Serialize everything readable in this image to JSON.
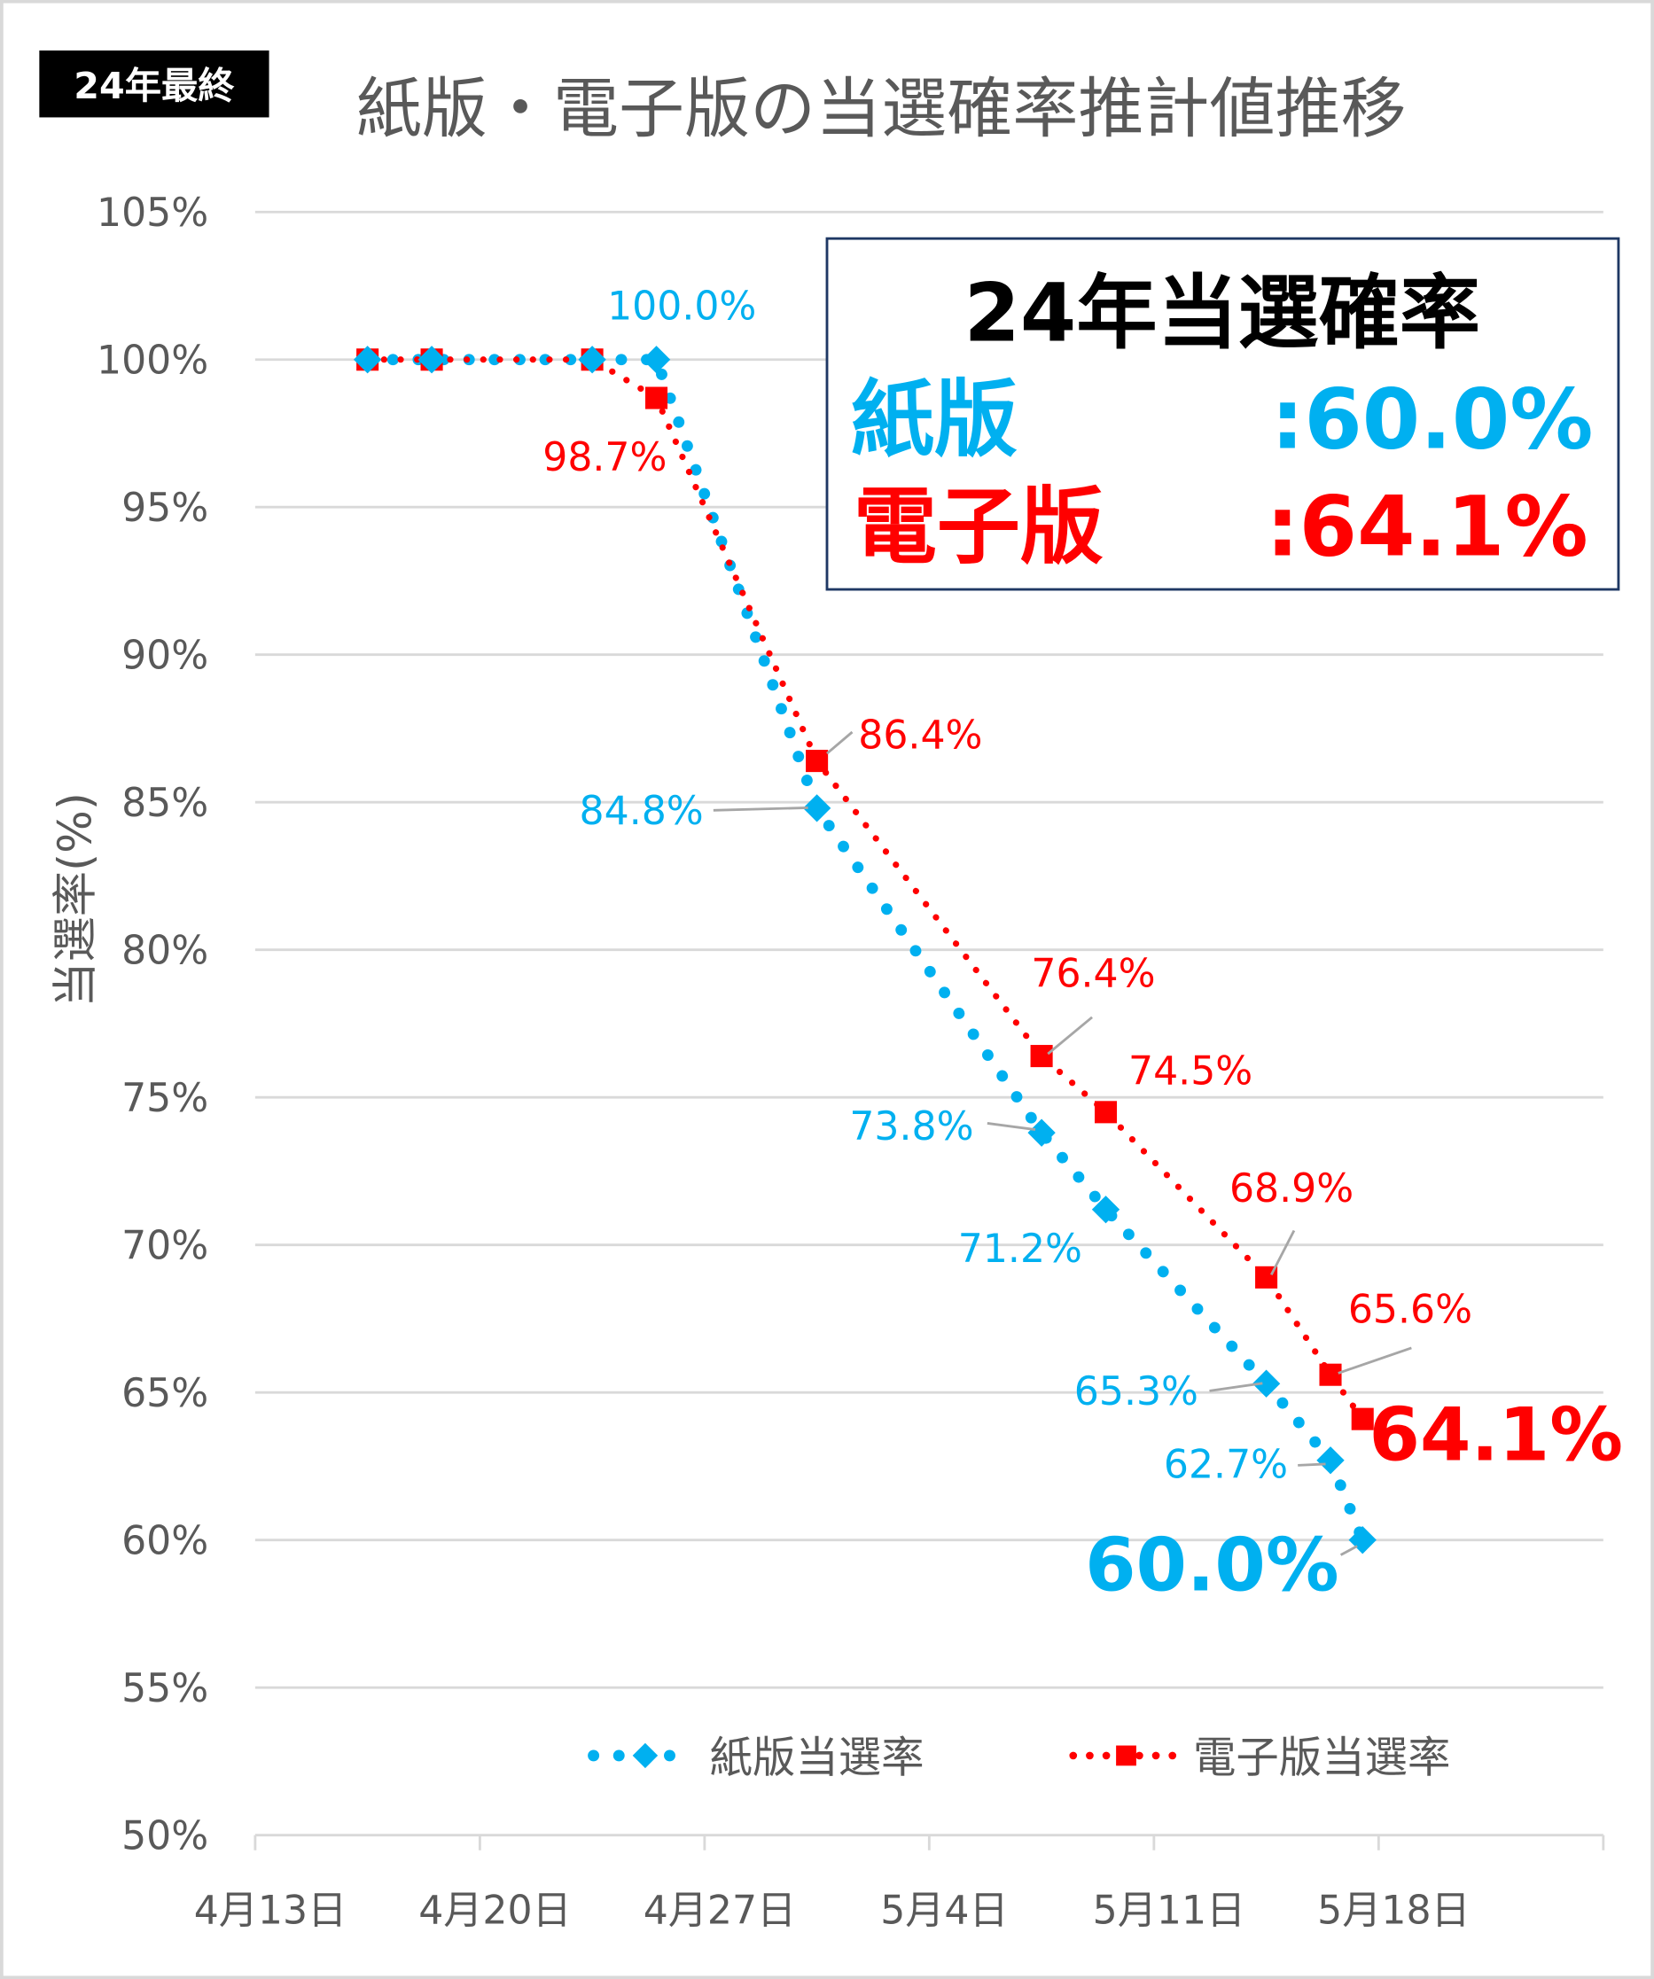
{
  "badge": "24年最終",
  "chart_data": {
    "type": "line",
    "title": "紙版・電子版の当選確率推計値推移",
    "xlabel": "",
    "ylabel": "当選率(%)",
    "ylim": [
      50,
      105
    ],
    "yticks": [
      "50%",
      "55%",
      "60%",
      "65%",
      "70%",
      "75%",
      "80%",
      "85%",
      "90%",
      "95%",
      "100%",
      "105%"
    ],
    "xticks": [
      "4月13日",
      "4月20日",
      "4月27日",
      "5月4日",
      "5月11日",
      "5月18日"
    ],
    "grid": true,
    "legend_position": "bottom",
    "series": [
      {
        "name": "紙版当選率",
        "color": "#00B0F0",
        "marker": "diamond",
        "x": [
          "4/16",
          "4/18",
          "4/23",
          "4/25",
          "4/30",
          "5/7",
          "5/9",
          "5/14",
          "5/16",
          "5/17"
        ],
        "day_index": [
          3,
          5,
          10,
          12,
          17,
          24,
          26,
          31,
          33,
          34
        ],
        "values": [
          100,
          100,
          100,
          100,
          84.8,
          73.8,
          71.2,
          65.3,
          62.7,
          60.0
        ],
        "labels": [
          null,
          null,
          null,
          "100.0%",
          "84.8%",
          "73.8%",
          "71.2%",
          "65.3%",
          "62.7%",
          "60.0%"
        ]
      },
      {
        "name": "電子版当選率",
        "color": "#FF0000",
        "marker": "square",
        "x": [
          "4/16",
          "4/18",
          "4/23",
          "4/25",
          "4/30",
          "5/7",
          "5/9",
          "5/14",
          "5/16",
          "5/17"
        ],
        "day_index": [
          3,
          5,
          10,
          12,
          17,
          24,
          26,
          31,
          33,
          34
        ],
        "values": [
          100,
          100,
          100,
          98.7,
          86.4,
          76.4,
          74.5,
          68.9,
          65.6,
          64.1
        ],
        "labels": [
          null,
          null,
          null,
          "98.7%",
          "86.4%",
          "76.4%",
          "74.5%",
          "68.9%",
          "65.6%",
          "64.1%"
        ]
      }
    ]
  },
  "summary_box": {
    "title": "24年当選確率",
    "paper_label": "紙版",
    "paper_value": ":60.0%",
    "digital_label": "電子版",
    "digital_value": ":64.1%"
  }
}
